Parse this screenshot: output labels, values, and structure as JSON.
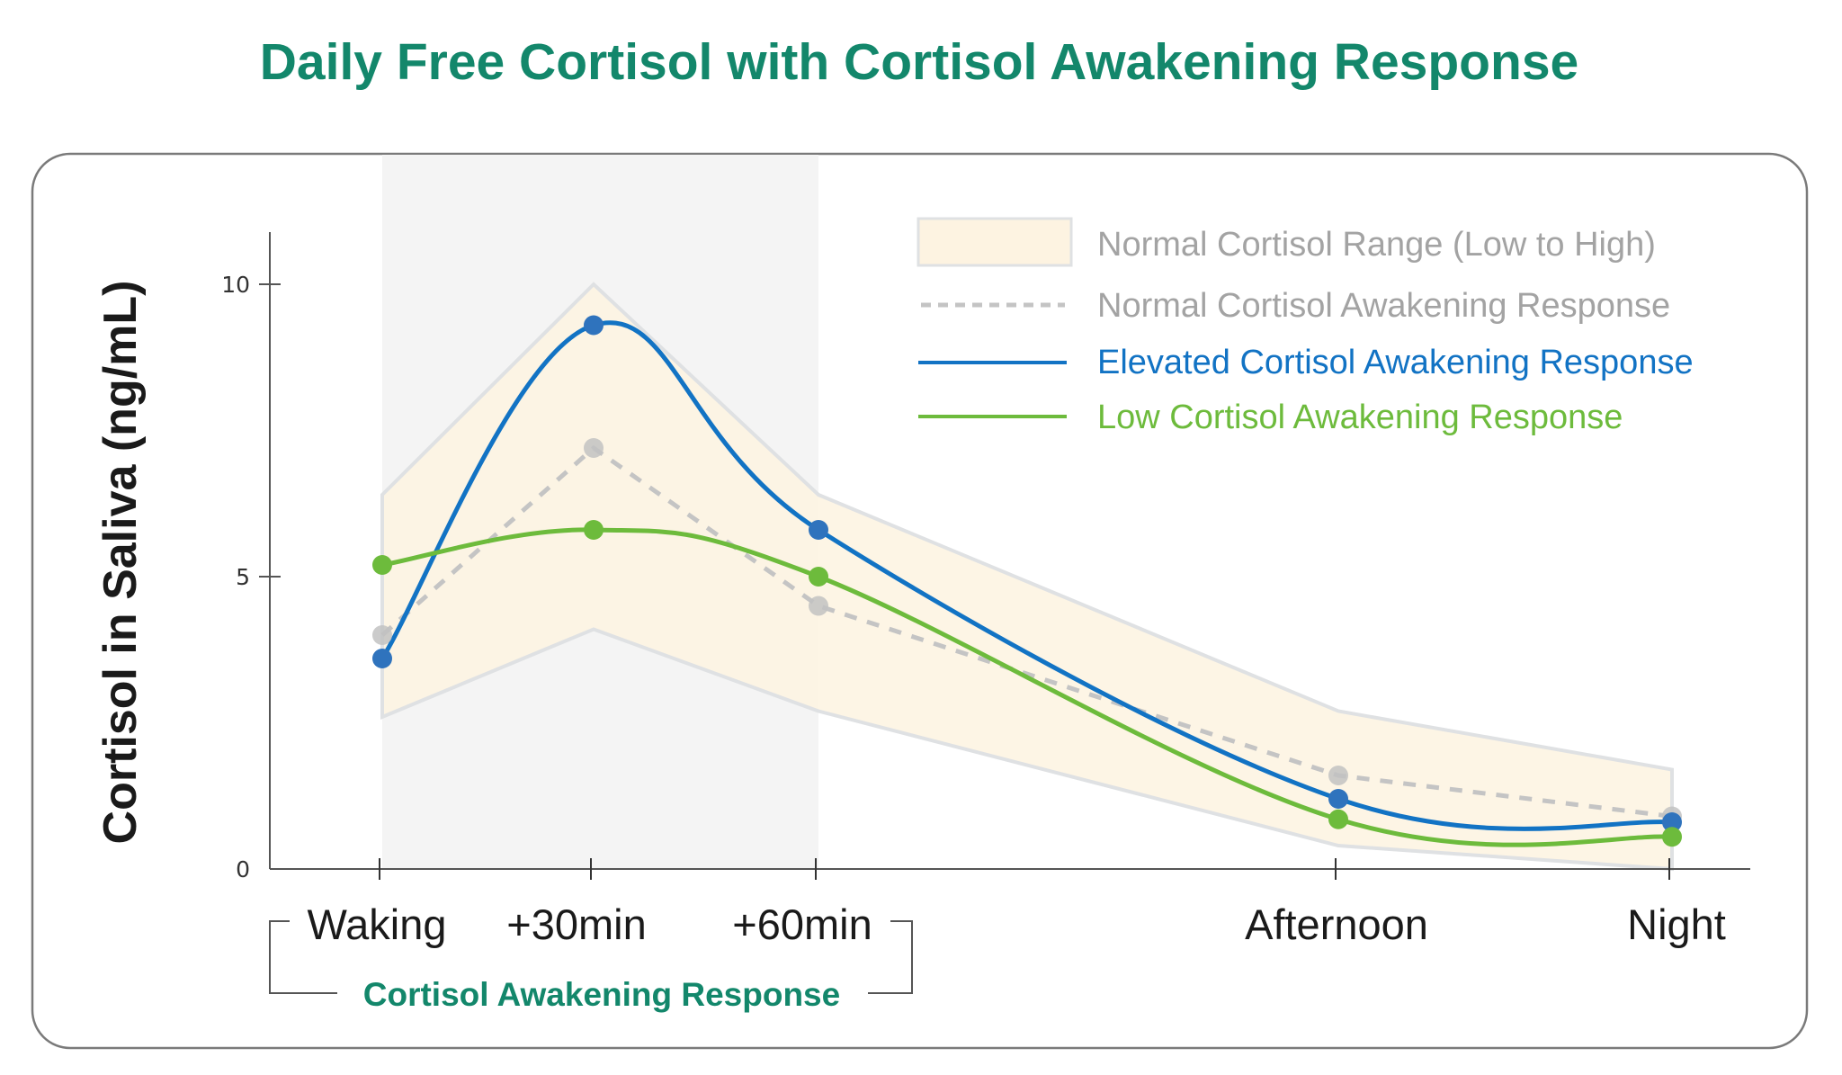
{
  "chart_data": {
    "type": "line",
    "title": "Daily Free Cortisol with Cortisol Awakening Response",
    "xlabel": "",
    "ylabel": "Cortisol in Saliva (ng/mL)",
    "ylim": [
      0,
      10.5
    ],
    "yticks": [
      0,
      5,
      10
    ],
    "ytick_labels": [
      "0",
      "5",
      "10"
    ],
    "categories": [
      "Waking",
      "+30min",
      "+60min",
      "Afternoon",
      "Night"
    ],
    "category_group": {
      "label": "Cortisol Awakening Response",
      "members": [
        "Waking",
        "+30min",
        "+60min"
      ]
    },
    "shaded_region": {
      "from": "Waking",
      "to": "+60min",
      "color": "#f4f4f4"
    },
    "band": {
      "name": "Normal Cortisol Range (Low to High)",
      "low": [
        2.6,
        4.1,
        2.7,
        0.4,
        0.0
      ],
      "high": [
        6.4,
        10.0,
        6.4,
        2.7,
        1.7
      ],
      "fill": "#fdf3e1",
      "edge": "#dfe1e3"
    },
    "series": [
      {
        "name": "Normal Cortisol Awakening Response",
        "values": [
          4.0,
          7.2,
          4.5,
          1.6,
          0.9
        ],
        "color": "#c4c4c4",
        "style": "dashed"
      },
      {
        "name": "Elevated Cortisol Awakening Response",
        "values": [
          3.6,
          9.3,
          5.8,
          1.2,
          0.8
        ],
        "color": "#1273c4",
        "style": "solid-curve"
      },
      {
        "name": "Low Cortisol Awakening Response",
        "values": [
          5.2,
          5.8,
          5.0,
          0.85,
          0.55
        ],
        "color": "#6dbb3c",
        "style": "solid-curve"
      }
    ],
    "legend_position": "top-right",
    "legend_text_colors": [
      "#a3a3a3",
      "#a3a3a3",
      "#1273c4",
      "#6dbb3c"
    ],
    "grid": false
  }
}
